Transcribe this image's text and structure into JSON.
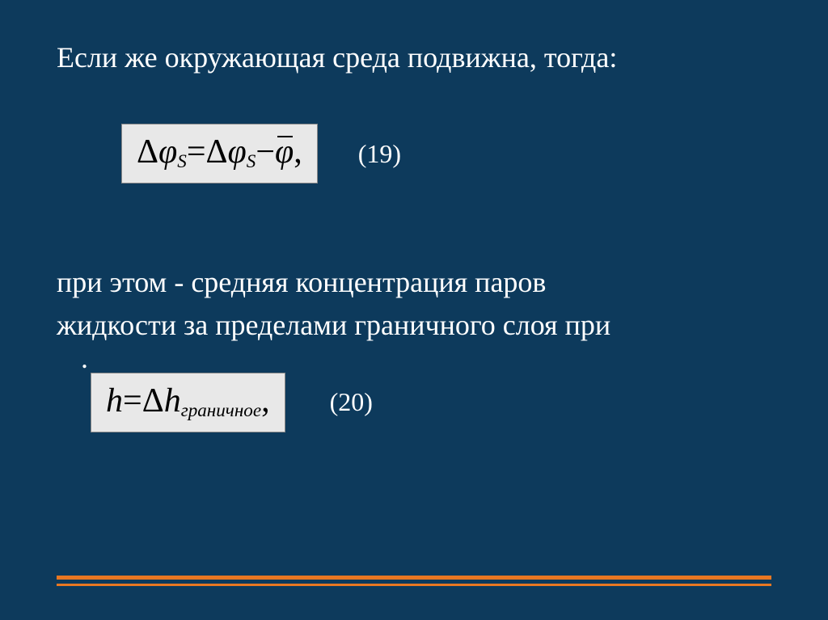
{
  "colors": {
    "background": "#0d3a5c",
    "text": "#ffffff",
    "formula_bg": "#e8e8e8",
    "formula_text": "#000000",
    "rule": "#e87722"
  },
  "title": "Если же окружающая среда подвижна, тогда:",
  "formula1": {
    "delta1": "Δ",
    "phi1": "φ",
    "sub1": "S",
    "eq": " = ",
    "delta2": "Δ",
    "phi2": "φ",
    "sub2": "S",
    "minus": " − ",
    "phibar": "φ",
    "comma": ","
  },
  "eqnum1": "(19)",
  "body_line1": "при этом    -  средняя  концентрация паров",
  "body_line2": "жидкости за пределами граничного  слоя при",
  "dot": ".",
  "formula2": {
    "h1": "h",
    "eq": " = ",
    "delta": "Δ",
    "h2": "h",
    "sub": "граничное",
    "comma": ","
  },
  "eqnum2": "(20)"
}
